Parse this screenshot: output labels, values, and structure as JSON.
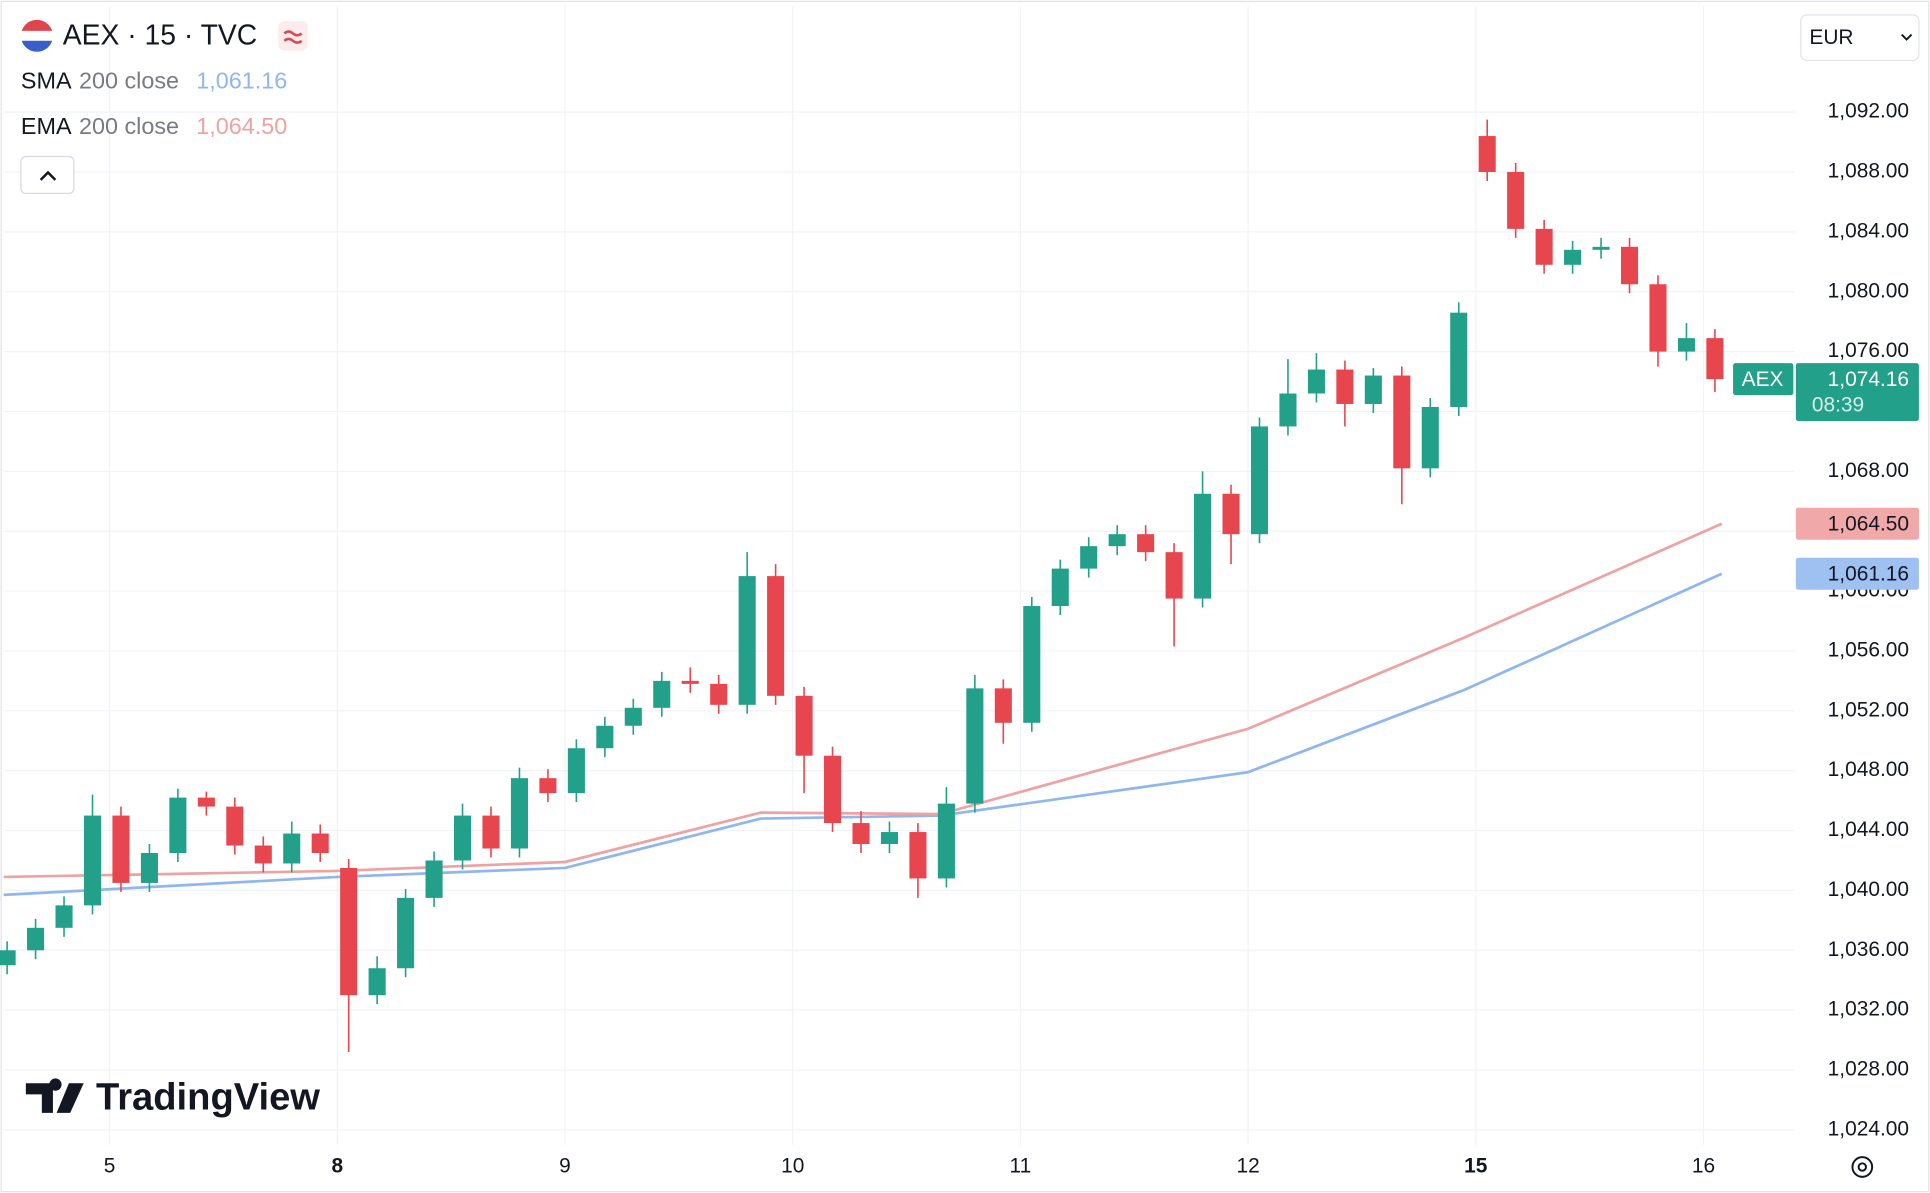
{
  "chart_data": {
    "type": "candlestick",
    "title": "AEX · 15 · TVC",
    "currency": "EUR",
    "watermark": "TradingView",
    "price_tag_label": "AEX",
    "last_label": "1,074.16",
    "countdown": "08:39",
    "up_color": "#22a08a",
    "down_color": "#e8464f",
    "grid": true,
    "xlim": [
      -0.465,
      7.4
    ],
    "ylim": [
      1023.0,
      1099.07
    ],
    "xticks": [
      {
        "value": 0,
        "label": "5"
      },
      {
        "value": 1,
        "label": "8",
        "bold": true
      },
      {
        "value": 2,
        "label": "9"
      },
      {
        "value": 3,
        "label": "10"
      },
      {
        "value": 4,
        "label": "11"
      },
      {
        "value": 5,
        "label": "12"
      },
      {
        "value": 6,
        "label": "15",
        "bold": true
      },
      {
        "value": 7,
        "label": "16"
      }
    ],
    "yticks": [
      {
        "value": 1024,
        "label": "1,024.00"
      },
      {
        "value": 1028,
        "label": "1,028.00"
      },
      {
        "value": 1032,
        "label": "1,032.00"
      },
      {
        "value": 1036,
        "label": "1,036.00"
      },
      {
        "value": 1040,
        "label": "1,040.00"
      },
      {
        "value": 1044,
        "label": "1,044.00"
      },
      {
        "value": 1048,
        "label": "1,048.00"
      },
      {
        "value": 1052,
        "label": "1,052.00"
      },
      {
        "value": 1056,
        "label": "1,056.00"
      },
      {
        "value": 1060,
        "label": "1,060.00"
      },
      {
        "value": 1064,
        "label": "1,064.00"
      },
      {
        "value": 1068,
        "label": "1,068.00"
      },
      {
        "value": 1072,
        "label": "1,072.00"
      },
      {
        "value": 1076,
        "label": "1,076.00"
      },
      {
        "value": 1080,
        "label": "1,080.00"
      },
      {
        "value": 1084,
        "label": "1,084.00"
      },
      {
        "value": 1088,
        "label": "1,088.00"
      },
      {
        "value": 1092,
        "label": "1,092.00"
      }
    ],
    "x": [
      -0.45,
      -0.325,
      -0.2,
      -0.075,
      0.05,
      0.175,
      0.3,
      0.425,
      0.55,
      0.675,
      0.8,
      0.925,
      1.05,
      1.175,
      1.3,
      1.425,
      1.55,
      1.675,
      1.8,
      1.925,
      2.05,
      2.175,
      2.3,
      2.425,
      2.55,
      2.675,
      2.8,
      2.925,
      3.05,
      3.175,
      3.3,
      3.425,
      3.55,
      3.675,
      3.8,
      3.925,
      4.05,
      4.175,
      4.3,
      4.425,
      4.55,
      4.675,
      4.8,
      4.925,
      5.05,
      5.175,
      5.3,
      5.425,
      5.55,
      5.675,
      5.8,
      5.925,
      6.05,
      6.175,
      6.3,
      6.425,
      6.55,
      6.675,
      6.8,
      6.925,
      7.05
    ],
    "open": [
      1035.0,
      1036.0,
      1037.5,
      1039.0,
      1045.0,
      1040.5,
      1042.5,
      1046.2,
      1045.6,
      1043.0,
      1041.8,
      1043.8,
      1041.5,
      1033.0,
      1034.8,
      1039.5,
      1042.0,
      1045.0,
      1042.8,
      1047.5,
      1046.5,
      1049.5,
      1051.0,
      1052.2,
      1054.0,
      1053.8,
      1052.4,
      1061.0,
      1053.0,
      1049.0,
      1044.5,
      1043.1,
      1043.9,
      1040.8,
      1045.8,
      1053.5,
      1051.2,
      1059.0,
      1061.5,
      1063.0,
      1063.8,
      1062.6,
      1059.5,
      1066.5,
      1063.8,
      1071.0,
      1073.2,
      1074.8,
      1072.5,
      1074.4,
      1068.2,
      1072.3,
      1090.4,
      1088.0,
      1084.2,
      1081.8,
      1082.8,
      1083.0,
      1080.5,
      1076.0,
      1076.9
    ],
    "high": [
      1036.6,
      1038.1,
      1039.6,
      1046.4,
      1045.6,
      1043.1,
      1046.8,
      1046.6,
      1046.2,
      1043.6,
      1044.6,
      1044.4,
      1042.1,
      1035.6,
      1040.1,
      1042.6,
      1045.8,
      1045.6,
      1048.2,
      1048.1,
      1050.1,
      1051.6,
      1052.8,
      1054.6,
      1054.9,
      1054.4,
      1062.6,
      1061.8,
      1053.6,
      1049.6,
      1045.3,
      1044.6,
      1044.5,
      1046.9,
      1054.4,
      1054.1,
      1059.6,
      1062.1,
      1063.6,
      1064.4,
      1064.4,
      1063.2,
      1068.0,
      1067.1,
      1071.6,
      1075.5,
      1075.9,
      1075.4,
      1074.9,
      1075.0,
      1072.9,
      1079.3,
      1091.5,
      1088.6,
      1084.8,
      1083.4,
      1083.6,
      1083.6,
      1081.1,
      1077.9,
      1077.5
    ],
    "low": [
      1034.4,
      1035.4,
      1036.9,
      1038.4,
      1039.9,
      1039.9,
      1041.9,
      1045.0,
      1042.4,
      1041.2,
      1041.2,
      1041.9,
      1029.2,
      1032.4,
      1034.2,
      1038.9,
      1041.4,
      1042.2,
      1042.2,
      1045.9,
      1045.9,
      1048.9,
      1050.4,
      1051.6,
      1053.2,
      1051.8,
      1051.8,
      1052.4,
      1046.5,
      1043.9,
      1042.5,
      1042.5,
      1039.5,
      1040.2,
      1045.2,
      1049.8,
      1050.6,
      1058.4,
      1060.9,
      1062.4,
      1062.0,
      1056.3,
      1058.9,
      1061.8,
      1063.2,
      1070.4,
      1072.6,
      1071.0,
      1071.9,
      1065.8,
      1067.6,
      1071.7,
      1087.4,
      1083.6,
      1081.2,
      1081.2,
      1082.2,
      1079.9,
      1075.0,
      1075.4,
      1073.3
    ],
    "close": [
      1036.0,
      1037.5,
      1039.0,
      1045.0,
      1040.5,
      1042.5,
      1046.2,
      1045.6,
      1043.0,
      1041.8,
      1043.8,
      1042.5,
      1033.0,
      1034.8,
      1039.5,
      1042.0,
      1045.0,
      1042.8,
      1047.5,
      1046.5,
      1049.5,
      1051.0,
      1052.2,
      1054.0,
      1053.8,
      1052.4,
      1061.0,
      1053.0,
      1049.0,
      1044.5,
      1043.1,
      1043.9,
      1040.8,
      1045.8,
      1053.5,
      1051.2,
      1059.0,
      1061.5,
      1063.0,
      1063.8,
      1062.6,
      1059.5,
      1066.5,
      1063.8,
      1071.0,
      1073.2,
      1074.8,
      1072.5,
      1074.4,
      1068.2,
      1072.3,
      1078.6,
      1088.0,
      1084.2,
      1081.8,
      1082.8,
      1083.0,
      1080.5,
      1076.0,
      1076.9,
      1074.16
    ],
    "lines": [
      {
        "name": "SMA",
        "params": "200 close",
        "color": "#8fb6ef",
        "tag_color": "#9ec1f2",
        "last_label": "1,061.16",
        "x": [
          -0.465,
          1.0,
          2.0,
          2.86,
          3.65,
          5.0,
          5.95,
          7.08
        ],
        "values": [
          1039.7,
          1040.9,
          1041.5,
          1044.8,
          1045.0,
          1047.9,
          1053.4,
          1061.16
        ]
      },
      {
        "name": "EMA",
        "params": "200 close",
        "color": "#eea3a3",
        "tag_color": "#f1a8a8",
        "last_label": "1,064.50",
        "x": [
          -0.465,
          1.0,
          2.0,
          2.86,
          3.65,
          5.0,
          5.95,
          7.08
        ],
        "values": [
          1040.9,
          1041.3,
          1041.9,
          1045.2,
          1045.1,
          1050.8,
          1056.9,
          1064.5
        ]
      }
    ]
  }
}
